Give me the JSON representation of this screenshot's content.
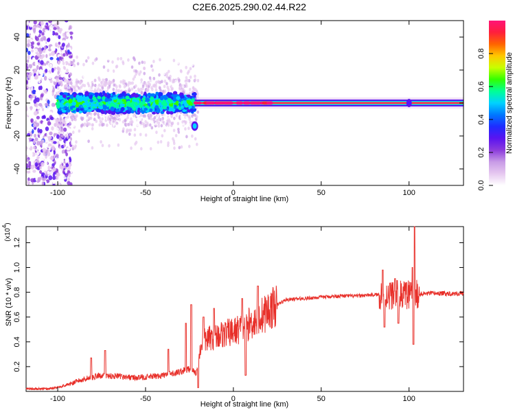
{
  "title": "C2E6.2025.290.02.44.R22",
  "colors": {
    "snr_line": "#e8302a",
    "axis": "#000000",
    "colormap": [
      "#ffffff",
      "#e6c8f0",
      "#c89be6",
      "#8c3cdc",
      "#5a14f0",
      "#1e2cff",
      "#0078ff",
      "#00d2ff",
      "#00ff96",
      "#32ff00",
      "#c8ff00",
      "#ffc800",
      "#ff6400",
      "#ff1e3c",
      "#ff1478"
    ]
  },
  "chart_data": [
    {
      "type": "heatmap",
      "name": "spectrogram",
      "xlabel": "Height of straight line (km)",
      "ylabel": "Frequency (Hz)",
      "xlim": [
        -118,
        131
      ],
      "ylim": [
        -50,
        50
      ],
      "xticks": [
        "-100",
        "-50",
        "0",
        "50",
        "100"
      ],
      "xtick_values": [
        -100,
        -50,
        0,
        50,
        100
      ],
      "yticks": [
        "-40",
        "-20",
        "0",
        "20",
        "40"
      ],
      "ytick_values": [
        -40,
        -20,
        0,
        20,
        40
      ],
      "features": {
        "noise_region_x": [
          -118,
          -96
        ],
        "carrier_frequency_hz": 0,
        "broad_scintillation_x": [
          -100,
          -22
        ],
        "narrow_carrier_x": [
          -22,
          131
        ],
        "side_feature": {
          "x": -22,
          "y": -14
        }
      }
    },
    {
      "type": "colorbar",
      "name": "colorbar",
      "label": "Normalized spectral amplitude",
      "range": [
        0,
        1
      ],
      "ticks": [
        "0.0",
        "0.2",
        "0.4",
        "0.6",
        "0.8"
      ],
      "tick_values": [
        0.0,
        0.2,
        0.4,
        0.6,
        0.8
      ]
    },
    {
      "type": "line",
      "name": "snr",
      "xlabel": "Height of straight line (km)",
      "ylabel": "SNR (10 * v/v)",
      "scale_label": "(x10",
      "scale_exponent": "4",
      "scale_close": ")",
      "xlim": [
        -118,
        131
      ],
      "ylim": [
        0,
        1.33
      ],
      "xticks": [
        "-100",
        "-50",
        "0",
        "50",
        "100"
      ],
      "xtick_values": [
        -100,
        -50,
        0,
        50,
        100
      ],
      "yticks": [
        "0.2",
        "0.4",
        "0.6",
        "0.8",
        "1.0",
        "1.2"
      ],
      "ytick_values": [
        0.2,
        0.4,
        0.6,
        0.8,
        1.0,
        1.2
      ],
      "trend_x": [
        -118,
        -105,
        -95,
        -85,
        -75,
        -65,
        -55,
        -45,
        -35,
        -25,
        -21,
        -18,
        -10,
        0,
        10,
        15,
        20,
        25,
        30,
        40,
        50,
        60,
        70,
        80,
        90,
        100,
        104,
        110,
        131
      ],
      "trend_y": [
        0.02,
        0.02,
        0.05,
        0.1,
        0.13,
        0.12,
        0.11,
        0.12,
        0.14,
        0.18,
        0.15,
        0.4,
        0.45,
        0.48,
        0.55,
        0.6,
        0.65,
        0.7,
        0.74,
        0.75,
        0.76,
        0.77,
        0.77,
        0.78,
        0.78,
        0.78,
        0.78,
        0.79,
        0.79
      ],
      "spikes": [
        {
          "x": -81,
          "y": 0.27
        },
        {
          "x": -73,
          "y": 0.33
        },
        {
          "x": -37,
          "y": 0.34
        },
        {
          "x": -27,
          "y": 0.55
        },
        {
          "x": -24,
          "y": 0.7
        },
        {
          "x": -20,
          "y": 0.03
        },
        {
          "x": -17,
          "y": 0.6
        },
        {
          "x": -11,
          "y": 0.67
        },
        {
          "x": 5,
          "y": 0.75
        },
        {
          "x": 7,
          "y": 0.13
        },
        {
          "x": 14,
          "y": 0.85
        },
        {
          "x": 85,
          "y": 0.98
        },
        {
          "x": 86,
          "y": 0.52
        },
        {
          "x": 92,
          "y": 0.91
        },
        {
          "x": 94,
          "y": 0.55
        },
        {
          "x": 102,
          "y": 1.0
        },
        {
          "x": 103,
          "y": 1.33
        },
        {
          "x": 102.5,
          "y": 0.38
        }
      ]
    }
  ]
}
